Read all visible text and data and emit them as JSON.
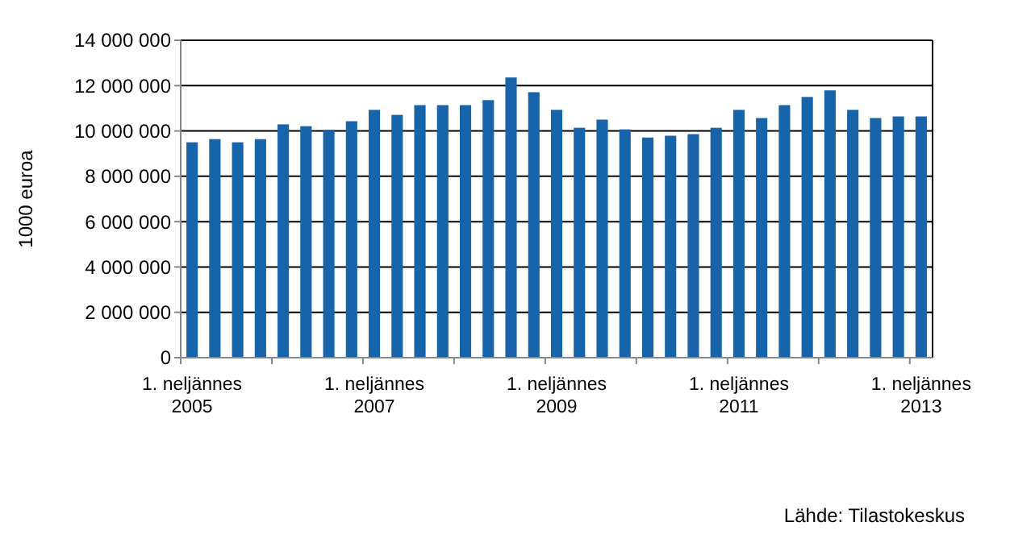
{
  "chart_data": {
    "type": "bar",
    "ylabel": "1000 euroa",
    "annotations": [
      "Lähde: Tilastokeskus"
    ],
    "categories": [
      "1. neljännes\n2005",
      null,
      null,
      null,
      null,
      null,
      null,
      null,
      "1. neljännes\n2007",
      null,
      null,
      null,
      null,
      null,
      null,
      null,
      "1. neljännes\n2009",
      null,
      null,
      null,
      null,
      null,
      null,
      null,
      "1. neljännes\n2011",
      null,
      null,
      null,
      null,
      null,
      null,
      null,
      "1. neljännes\n2013"
    ],
    "values": [
      9500000,
      9640000,
      9500000,
      9640000,
      10290000,
      10210000,
      10050000,
      10430000,
      10930000,
      10710000,
      11140000,
      11140000,
      11140000,
      11360000,
      12360000,
      11710000,
      10930000,
      10140000,
      10500000,
      10070000,
      9710000,
      9790000,
      9860000,
      10140000,
      10930000,
      10570000,
      11140000,
      11500000,
      11790000,
      10930000,
      10570000,
      10640000,
      10640000
    ],
    "color": "#1764ab",
    "ylim": [
      0,
      14000000
    ],
    "yticks": [
      {
        "value": 0,
        "label": "0"
      },
      {
        "value": 2000000,
        "label": "2 000 000"
      },
      {
        "value": 4000000,
        "label": "4 000 000"
      },
      {
        "value": 6000000,
        "label": "6 000 000"
      },
      {
        "value": 8000000,
        "label": "8 000 000"
      },
      {
        "value": 10000000,
        "label": "10 000 000"
      },
      {
        "value": 12000000,
        "label": "12 000 000"
      },
      {
        "value": 14000000,
        "label": "14 000 000"
      }
    ],
    "grid": "y"
  }
}
